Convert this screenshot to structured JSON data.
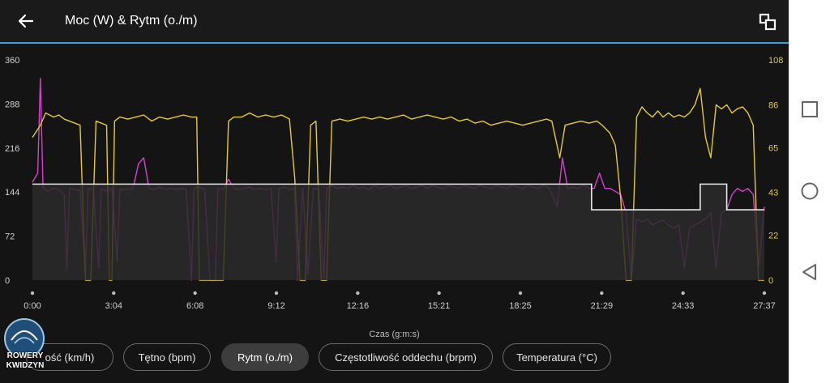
{
  "header": {
    "title": "Moc (W) & Rytm (o./m)"
  },
  "chart_data": {
    "type": "line",
    "xlabel": "Czas (g:m:s)",
    "x_ticks": [
      "0:00",
      "3:04",
      "6:08",
      "9:12",
      "12:16",
      "15:21",
      "18:25",
      "21:29",
      "24:33",
      "27:37"
    ],
    "x_range_min": [
      0,
      27.62
    ],
    "y_left_ticks": [
      0,
      72,
      144,
      216,
      288,
      360
    ],
    "y_left_range": [
      0,
      360
    ],
    "y_right_ticks": [
      0,
      22,
      43,
      65,
      86,
      108
    ],
    "y_right_range": [
      0,
      108
    ],
    "grid": false,
    "series": [
      {
        "name": "Moc (W)",
        "axis": "left",
        "color": "#d63fd0",
        "style": "line",
        "points": [
          [
            0,
            160
          ],
          [
            0.2,
            175
          ],
          [
            0.3,
            330
          ],
          [
            0.4,
            150
          ],
          [
            0.6,
            145
          ],
          [
            0.8,
            150
          ],
          [
            1,
            148
          ],
          [
            1.2,
            140
          ],
          [
            1.3,
            20
          ],
          [
            1.4,
            150
          ],
          [
            1.6,
            148
          ],
          [
            1.8,
            147
          ],
          [
            2.0,
            10
          ],
          [
            2.1,
            150
          ],
          [
            2.3,
            148
          ],
          [
            2.5,
            20
          ],
          [
            2.6,
            150
          ],
          [
            2.8,
            145
          ],
          [
            3,
            150
          ],
          [
            3.2,
            30
          ],
          [
            3.3,
            148
          ],
          [
            3.5,
            148
          ],
          [
            3.8,
            150
          ],
          [
            4.0,
            190
          ],
          [
            4.2,
            200
          ],
          [
            4.4,
            150
          ],
          [
            4.6,
            148
          ],
          [
            4.8,
            152
          ],
          [
            5,
            148
          ],
          [
            5.2,
            150
          ],
          [
            5.4,
            148
          ],
          [
            5.6,
            150
          ],
          [
            5.8,
            148
          ],
          [
            6,
            0
          ],
          [
            6.1,
            150
          ],
          [
            6.3,
            152
          ],
          [
            6.5,
            148
          ],
          [
            6.7,
            0
          ],
          [
            6.9,
            0
          ],
          [
            7,
            150
          ],
          [
            7.2,
            148
          ],
          [
            7.4,
            165
          ],
          [
            7.6,
            150
          ],
          [
            7.8,
            148
          ],
          [
            8,
            150
          ],
          [
            8.2,
            152
          ],
          [
            8.4,
            148
          ],
          [
            8.6,
            150
          ],
          [
            8.8,
            148
          ],
          [
            9,
            150
          ],
          [
            9.2,
            30
          ],
          [
            9.3,
            150
          ],
          [
            9.5,
            152
          ],
          [
            9.7,
            148
          ],
          [
            9.9,
            150
          ],
          [
            10,
            0
          ],
          [
            10.2,
            150
          ],
          [
            10.4,
            10
          ],
          [
            10.6,
            150
          ],
          [
            10.8,
            148
          ],
          [
            11,
            0
          ],
          [
            11.1,
            150
          ],
          [
            11.3,
            155
          ],
          [
            11.5,
            150
          ],
          [
            11.7,
            152
          ],
          [
            11.9,
            150
          ],
          [
            12.1,
            155
          ],
          [
            12.3,
            150
          ],
          [
            12.5,
            152
          ],
          [
            12.7,
            148
          ],
          [
            12.9,
            155
          ],
          [
            13.1,
            150
          ],
          [
            13.3,
            152
          ],
          [
            13.5,
            155
          ],
          [
            13.7,
            150
          ],
          [
            13.9,
            152
          ],
          [
            14.1,
            155
          ],
          [
            14.3,
            150
          ],
          [
            14.5,
            152
          ],
          [
            14.7,
            155
          ],
          [
            14.9,
            150
          ],
          [
            15.1,
            155
          ],
          [
            15.3,
            152
          ],
          [
            15.5,
            150
          ],
          [
            15.7,
            155
          ],
          [
            15.9,
            152
          ],
          [
            16.1,
            150
          ],
          [
            16.3,
            155
          ],
          [
            16.5,
            152
          ],
          [
            16.7,
            150
          ],
          [
            16.9,
            155
          ],
          [
            17.1,
            152
          ],
          [
            17.3,
            150
          ],
          [
            17.5,
            155
          ],
          [
            17.7,
            152
          ],
          [
            17.9,
            150
          ],
          [
            18.1,
            155
          ],
          [
            18.3,
            152
          ],
          [
            18.5,
            150
          ],
          [
            18.7,
            155
          ],
          [
            18.9,
            152
          ],
          [
            19.1,
            150
          ],
          [
            19.3,
            155
          ],
          [
            19.5,
            150
          ],
          [
            19.8,
            120
          ],
          [
            20,
            200
          ],
          [
            20.2,
            150
          ],
          [
            20.4,
            152
          ],
          [
            20.6,
            150
          ],
          [
            20.8,
            155
          ],
          [
            21,
            150
          ],
          [
            21.2,
            150
          ],
          [
            21.4,
            175
          ],
          [
            21.6,
            150
          ],
          [
            21.8,
            150
          ],
          [
            22,
            145
          ],
          [
            22.2,
            140
          ],
          [
            22.4,
            110
          ],
          [
            22.6,
            0
          ],
          [
            22.8,
            100
          ],
          [
            23,
            95
          ],
          [
            23.2,
            100
          ],
          [
            23.4,
            90
          ],
          [
            23.6,
            95
          ],
          [
            23.8,
            98
          ],
          [
            24,
            90
          ],
          [
            24.2,
            85
          ],
          [
            24.4,
            90
          ],
          [
            24.6,
            20
          ],
          [
            24.8,
            85
          ],
          [
            25,
            90
          ],
          [
            25.2,
            95
          ],
          [
            25.4,
            100
          ],
          [
            25.6,
            110
          ],
          [
            25.8,
            20
          ],
          [
            26,
            110
          ],
          [
            26.2,
            115
          ],
          [
            26.4,
            140
          ],
          [
            26.6,
            150
          ],
          [
            26.8,
            145
          ],
          [
            27,
            150
          ],
          [
            27.2,
            140
          ],
          [
            27.4,
            20
          ],
          [
            27.62,
            120
          ]
        ]
      },
      {
        "name": "Rytm (o./m)",
        "axis": "right",
        "color": "#e6cc29",
        "style": "line",
        "points": [
          [
            0,
            70
          ],
          [
            0.3,
            76
          ],
          [
            0.5,
            82
          ],
          [
            0.8,
            80
          ],
          [
            1,
            81
          ],
          [
            1.2,
            79
          ],
          [
            1.4,
            78
          ],
          [
            1.6,
            77
          ],
          [
            1.8,
            76
          ],
          [
            2,
            0
          ],
          [
            2.2,
            0
          ],
          [
            2.4,
            78
          ],
          [
            2.6,
            77
          ],
          [
            2.8,
            76
          ],
          [
            2.9,
            0
          ],
          [
            3.0,
            0
          ],
          [
            3.1,
            78
          ],
          [
            3.3,
            80
          ],
          [
            3.6,
            79
          ],
          [
            3.9,
            80
          ],
          [
            4.2,
            81
          ],
          [
            4.5,
            78
          ],
          [
            4.8,
            80
          ],
          [
            5.1,
            79
          ],
          [
            5.4,
            80
          ],
          [
            5.7,
            81
          ],
          [
            6,
            80
          ],
          [
            6.2,
            80
          ],
          [
            6.3,
            0
          ],
          [
            6.5,
            0
          ],
          [
            6.8,
            0
          ],
          [
            7.2,
            0
          ],
          [
            7.4,
            78
          ],
          [
            7.6,
            80
          ],
          [
            7.9,
            80
          ],
          [
            8.2,
            82
          ],
          [
            8.5,
            80
          ],
          [
            8.8,
            81
          ],
          [
            9.1,
            80
          ],
          [
            9.4,
            81
          ],
          [
            9.7,
            79
          ],
          [
            9.9,
            50
          ],
          [
            10.1,
            0
          ],
          [
            10.3,
            0
          ],
          [
            10.5,
            76
          ],
          [
            10.7,
            78
          ],
          [
            10.9,
            0
          ],
          [
            11.1,
            0
          ],
          [
            11.3,
            78
          ],
          [
            11.6,
            79
          ],
          [
            11.9,
            78
          ],
          [
            12.2,
            79
          ],
          [
            12.5,
            80
          ],
          [
            12.8,
            79
          ],
          [
            13.1,
            80
          ],
          [
            13.4,
            79
          ],
          [
            13.7,
            80
          ],
          [
            14,
            81
          ],
          [
            14.3,
            79
          ],
          [
            14.6,
            80
          ],
          [
            14.9,
            81
          ],
          [
            15.2,
            80
          ],
          [
            15.5,
            79
          ],
          [
            15.8,
            80
          ],
          [
            16.1,
            78
          ],
          [
            16.4,
            79
          ],
          [
            16.7,
            77
          ],
          [
            17,
            78
          ],
          [
            17.3,
            76
          ],
          [
            17.6,
            77
          ],
          [
            17.9,
            78
          ],
          [
            18.2,
            77
          ],
          [
            18.5,
            76
          ],
          [
            18.8,
            77
          ],
          [
            19.1,
            78
          ],
          [
            19.4,
            79
          ],
          [
            19.6,
            78
          ],
          [
            19.9,
            60
          ],
          [
            20.1,
            76
          ],
          [
            20.4,
            77
          ],
          [
            20.7,
            78
          ],
          [
            21,
            77
          ],
          [
            21.3,
            78
          ],
          [
            21.5,
            76
          ],
          [
            21.8,
            72
          ],
          [
            22,
            66
          ],
          [
            22.2,
            40
          ],
          [
            22.4,
            0
          ],
          [
            22.6,
            0
          ],
          [
            22.8,
            80
          ],
          [
            23,
            85
          ],
          [
            23.2,
            82
          ],
          [
            23.4,
            80
          ],
          [
            23.6,
            83
          ],
          [
            23.8,
            80
          ],
          [
            24,
            82
          ],
          [
            24.2,
            80
          ],
          [
            24.4,
            81
          ],
          [
            24.6,
            80
          ],
          [
            24.8,
            82
          ],
          [
            25,
            86
          ],
          [
            25.2,
            94
          ],
          [
            25.4,
            70
          ],
          [
            25.6,
            60
          ],
          [
            25.8,
            86
          ],
          [
            26,
            84
          ],
          [
            26.2,
            86
          ],
          [
            26.4,
            82
          ],
          [
            26.6,
            84
          ],
          [
            26.8,
            85
          ],
          [
            27,
            82
          ],
          [
            27.2,
            76
          ],
          [
            27.4,
            0
          ],
          [
            27.62,
            0
          ]
        ]
      },
      {
        "name": "",
        "axis": "left",
        "color": "#e8e8e8",
        "style": "step",
        "points": [
          [
            0,
            157
          ],
          [
            21.1,
            157
          ],
          [
            21.1,
            115
          ],
          [
            25.2,
            115
          ],
          [
            25.2,
            157
          ],
          [
            26.2,
            157
          ],
          [
            26.2,
            115
          ],
          [
            27.62,
            115
          ]
        ]
      }
    ]
  },
  "chips": [
    "ość (km/h)",
    "Tętno (bpm)",
    "Rytm (o./m)",
    "Częstotliwość oddechu (brpm)",
    "Temperatura (°C)"
  ],
  "chips_selected": 2,
  "logo": {
    "line1": "ROWERY",
    "line2": "KWIDZYN"
  },
  "icons": {
    "back": "arrow-left-icon",
    "rotate": "screen-rotation-icon",
    "nav": [
      "square-icon",
      "circle-icon",
      "triangle-back-icon"
    ]
  }
}
